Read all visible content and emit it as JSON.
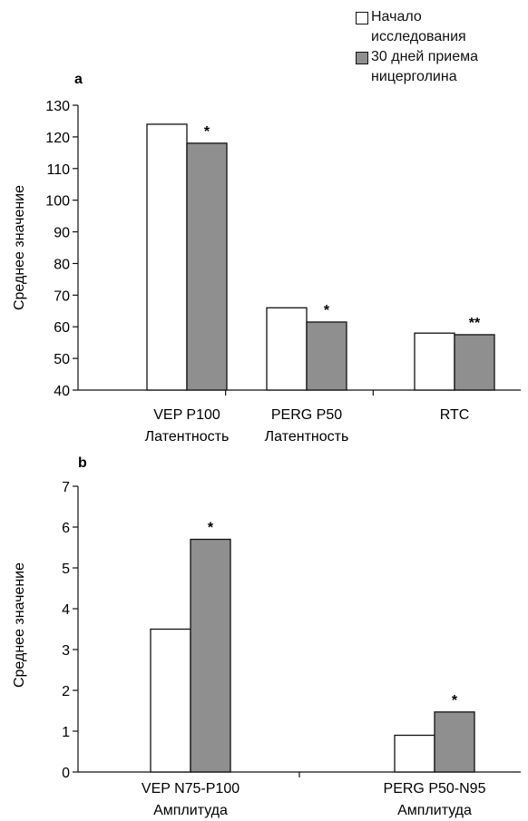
{
  "legend": {
    "items": [
      {
        "label": "Начало\nисследования",
        "color": "#ffffff"
      },
      {
        "label": "30 дней приема\nницерголина",
        "color": "#8f8f8f"
      }
    ]
  },
  "chart_data": [
    {
      "type": "bar",
      "panel_label": "a",
      "ylabel": "Среднее значение",
      "ylim": [
        40,
        130
      ],
      "yticks": [
        40,
        50,
        60,
        70,
        80,
        90,
        100,
        110,
        120,
        130
      ],
      "categories": [
        "VEP P100\nЛатентность",
        "PERG P50\nЛатентность",
        "RTC"
      ],
      "series": [
        {
          "name": "Начало исследования",
          "values": [
            124,
            66,
            58
          ],
          "color": "#ffffff"
        },
        {
          "name": "30 дней приема ницерголина",
          "values": [
            118,
            61.5,
            57.5
          ],
          "color": "#8f8f8f"
        }
      ],
      "annotations": [
        "*",
        "*",
        "**"
      ],
      "grid": false
    },
    {
      "type": "bar",
      "panel_label": "b",
      "ylabel": "Среднее значение",
      "ylim": [
        0,
        7
      ],
      "yticks": [
        0,
        1,
        2,
        3,
        4,
        5,
        6,
        7
      ],
      "categories": [
        "VEP N75-P100\nАмплитуда",
        "PERG P50-N95\nАмплитуда"
      ],
      "series": [
        {
          "name": "Начало исследования",
          "values": [
            3.5,
            0.9
          ],
          "color": "#ffffff"
        },
        {
          "name": "30 дней приема ницерголина",
          "values": [
            5.7,
            1.47
          ],
          "color": "#8f8f8f"
        }
      ],
      "annotations": [
        "*",
        "*"
      ],
      "grid": false
    }
  ]
}
